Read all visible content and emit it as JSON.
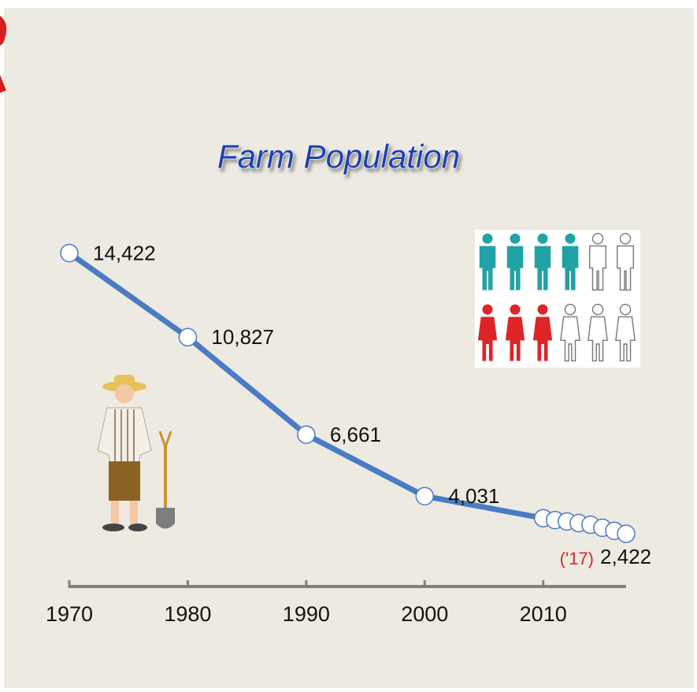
{
  "chart_data": {
    "type": "line",
    "title": "Farm Population",
    "x": [
      1970,
      1980,
      1990,
      2000,
      2010,
      2011,
      2012,
      2013,
      2014,
      2015,
      2016,
      2017
    ],
    "series": [
      {
        "color": "#4a7bc4",
        "values": [
          14422,
          10827,
          6661,
          4031,
          3090,
          3010,
          2950,
          2880,
          2810,
          2680,
          2550,
          2422
        ],
        "value_labels": [
          "14,422",
          "10,827",
          "6,661",
          "4,031",
          null,
          null,
          null,
          null,
          null,
          null,
          null,
          "2,422"
        ]
      }
    ],
    "annotations": [
      {
        "x": 2017,
        "text": "('17)"
      }
    ],
    "xlim": [
      1970,
      2017
    ],
    "xticks": [
      1970,
      1980,
      1990,
      2000,
      2010
    ],
    "ylim": [
      0,
      16000
    ]
  }
}
